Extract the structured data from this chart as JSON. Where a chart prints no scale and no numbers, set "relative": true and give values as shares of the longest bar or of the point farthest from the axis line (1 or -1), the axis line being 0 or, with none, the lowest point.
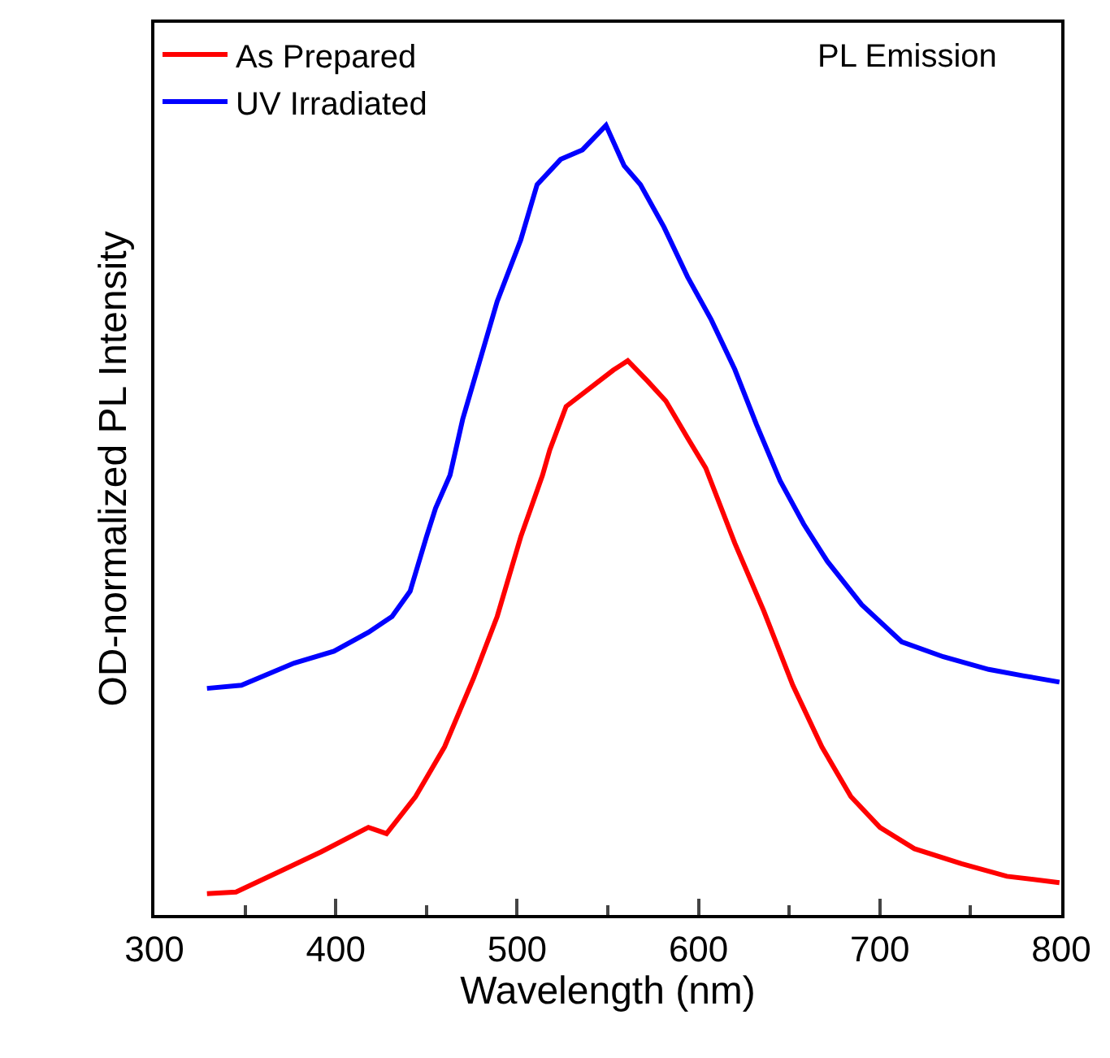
{
  "chart_data": {
    "type": "line",
    "relative": true,
    "xlabel": "Wavelength (nm)",
    "ylabel": "OD-normalized PL Intensity",
    "xlim": [
      300,
      800
    ],
    "xticks": [
      300,
      400,
      500,
      600,
      700,
      800
    ],
    "annotations": [
      "PL Emission"
    ],
    "legend": "top left",
    "marker": "none",
    "line_style": "solid",
    "series": [
      {
        "name": "As Prepared",
        "color": "#ff0000",
        "x": [
          329,
          345,
          370,
          392,
          418,
          428,
          444,
          460,
          476,
          489,
          502,
          508,
          514,
          518,
          527,
          540,
          553,
          561,
          572,
          582,
          594,
          604,
          620,
          636,
          652,
          668,
          684,
          700,
          719,
          745,
          770,
          799
        ],
        "values": [
          0.027,
          0.029,
          0.056,
          0.08,
          0.111,
          0.103,
          0.15,
          0.213,
          0.3,
          0.378,
          0.479,
          0.518,
          0.557,
          0.589,
          0.644,
          0.667,
          0.69,
          0.702,
          0.676,
          0.651,
          0.604,
          0.566,
          0.471,
          0.385,
          0.291,
          0.213,
          0.15,
          0.111,
          0.084,
          0.065,
          0.049,
          0.041
        ]
      },
      {
        "name": "UV Irradiated",
        "color": "#0000ff",
        "x": [
          329,
          348,
          377,
          399,
          418,
          431,
          441,
          450,
          455,
          463,
          470,
          489,
          502,
          511,
          524,
          536,
          549,
          559,
          568,
          581,
          594,
          607,
          620,
          632,
          645,
          658,
          671,
          690,
          712,
          735,
          760,
          779,
          799
        ],
        "values": [
          0.287,
          0.291,
          0.319,
          0.334,
          0.358,
          0.378,
          0.41,
          0.479,
          0.515,
          0.557,
          0.628,
          0.777,
          0.855,
          0.925,
          0.957,
          0.969,
          1.0,
          0.949,
          0.925,
          0.871,
          0.808,
          0.754,
          0.691,
          0.621,
          0.55,
          0.495,
          0.448,
          0.393,
          0.346,
          0.327,
          0.311,
          0.303,
          0.295
        ]
      }
    ]
  }
}
